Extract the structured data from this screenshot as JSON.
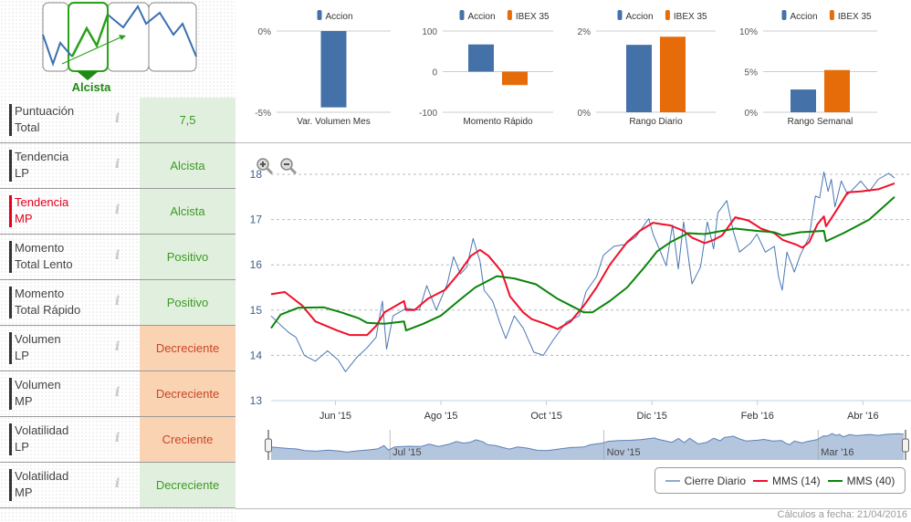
{
  "logo": {
    "label": "Alcista"
  },
  "indicators": [
    {
      "label_1": "Puntuación",
      "label_2": "Total",
      "value": "7,5",
      "status": "pos",
      "highlight": false
    },
    {
      "label_1": "Tendencia",
      "label_2": "LP",
      "value": "Alcista",
      "status": "pos",
      "highlight": false
    },
    {
      "label_1": "Tendencia",
      "label_2": "MP",
      "value": "Alcista",
      "status": "pos",
      "highlight": true
    },
    {
      "label_1": "Momento",
      "label_2": "Total Lento",
      "value": "Positivo",
      "status": "pos",
      "highlight": false
    },
    {
      "label_1": "Momento",
      "label_2": "Total Rápido",
      "value": "Positivo",
      "status": "pos",
      "highlight": false
    },
    {
      "label_1": "Volumen",
      "label_2": "LP",
      "value": "Decreciente",
      "status": "neg",
      "highlight": false
    },
    {
      "label_1": "Volumen",
      "label_2": "MP",
      "value": "Decreciente",
      "status": "neg",
      "highlight": false
    },
    {
      "label_1": "Volatilidad",
      "label_2": "LP",
      "value": "Creciente",
      "status": "neg",
      "highlight": false
    },
    {
      "label_1": "Volatilidad",
      "label_2": "MP",
      "value": "Decreciente",
      "status": "pos",
      "highlight": false
    }
  ],
  "info_icon": "i",
  "colors": {
    "accion": "#4472a8",
    "ibex": "#e66c0a",
    "cierre": "#4a76b4",
    "mms14": "#f0102a",
    "mms40": "#0a840a"
  },
  "chart_data": [
    {
      "type": "bar",
      "title": "Var. Volumen Mes",
      "series": [
        {
          "name": "Accion",
          "values": [
            -4.7
          ]
        }
      ],
      "ylim": [
        -5,
        0
      ],
      "yticks": [
        "0%",
        "-5%"
      ]
    },
    {
      "type": "bar",
      "title": "Momento Rápido",
      "series": [
        {
          "name": "Accion",
          "values": [
            67
          ]
        },
        {
          "name": "IBEX 35",
          "values": [
            -33
          ]
        }
      ],
      "ylim": [
        -100,
        100
      ],
      "yticks": [
        "100",
        "0",
        "-100"
      ]
    },
    {
      "type": "bar",
      "title": "Rango Diario",
      "series": [
        {
          "name": "Accion",
          "values": [
            1.66
          ]
        },
        {
          "name": "IBEX 35",
          "values": [
            1.86
          ]
        }
      ],
      "ylim": [
        0,
        2
      ],
      "yticks": [
        "2%",
        "0%"
      ]
    },
    {
      "type": "bar",
      "title": "Rango Semanal",
      "series": [
        {
          "name": "Accion",
          "values": [
            2.8
          ]
        },
        {
          "name": "IBEX 35",
          "values": [
            5.2
          ]
        }
      ],
      "ylim": [
        0,
        10
      ],
      "yticks": [
        "10%",
        "5%",
        "0%"
      ]
    },
    {
      "type": "line",
      "x_unit": "months since 2015-05-01",
      "xlim": [
        -0.22,
        11.6
      ],
      "ylim": [
        13,
        18
      ],
      "yticks": [
        13,
        14,
        15,
        16,
        17,
        18
      ],
      "xticks": [
        {
          "x": 1,
          "label": "Jun '15"
        },
        {
          "x": 3,
          "label": "Ago '15"
        },
        {
          "x": 5,
          "label": "Oct '15"
        },
        {
          "x": 7,
          "label": "Dic '15"
        },
        {
          "x": 9,
          "label": "Feb '16"
        },
        {
          "x": 11,
          "label": "Abr '16"
        }
      ],
      "navigator_labels": [
        {
          "x": 2,
          "label": "Jul '15"
        },
        {
          "x": 6,
          "label": "Nov '15"
        },
        {
          "x": 10,
          "label": "Mar '16"
        }
      ],
      "series": [
        {
          "name": "Cierre Diario",
          "points": [
            [
              -0.22,
              14.87
            ],
            [
              -0.04,
              14.67
            ],
            [
              0.12,
              14.5
            ],
            [
              0.25,
              14.4
            ],
            [
              0.41,
              14.0
            ],
            [
              0.62,
              13.87
            ],
            [
              0.85,
              14.1
            ],
            [
              1.05,
              13.9
            ],
            [
              1.19,
              13.64
            ],
            [
              1.4,
              13.95
            ],
            [
              1.6,
              14.17
            ],
            [
              1.77,
              14.4
            ],
            [
              1.89,
              15.2
            ],
            [
              1.97,
              14.14
            ],
            [
              2.09,
              14.87
            ],
            [
              2.34,
              15.04
            ],
            [
              2.59,
              15.0
            ],
            [
              2.73,
              15.54
            ],
            [
              2.91,
              15.0
            ],
            [
              3.12,
              15.58
            ],
            [
              3.24,
              16.18
            ],
            [
              3.37,
              15.8
            ],
            [
              3.49,
              15.95
            ],
            [
              3.61,
              16.58
            ],
            [
              3.74,
              16.08
            ],
            [
              3.82,
              15.44
            ],
            [
              3.98,
              15.2
            ],
            [
              4.11,
              14.74
            ],
            [
              4.23,
              14.37
            ],
            [
              4.39,
              14.87
            ],
            [
              4.56,
              14.6
            ],
            [
              4.76,
              14.07
            ],
            [
              4.94,
              14.0
            ],
            [
              5.13,
              14.34
            ],
            [
              5.38,
              14.74
            ],
            [
              5.62,
              14.87
            ],
            [
              5.75,
              15.41
            ],
            [
              5.95,
              15.74
            ],
            [
              6.08,
              16.21
            ],
            [
              6.28,
              16.41
            ],
            [
              6.49,
              16.45
            ],
            [
              6.69,
              16.61
            ],
            [
              6.94,
              17.02
            ],
            [
              7.02,
              16.68
            ],
            [
              7.14,
              16.35
            ],
            [
              7.27,
              15.98
            ],
            [
              7.39,
              16.88
            ],
            [
              7.5,
              15.91
            ],
            [
              7.6,
              16.95
            ],
            [
              7.76,
              15.58
            ],
            [
              7.92,
              15.95
            ],
            [
              8.05,
              16.95
            ],
            [
              8.17,
              16.35
            ],
            [
              8.25,
              17.15
            ],
            [
              8.42,
              17.42
            ],
            [
              8.54,
              16.75
            ],
            [
              8.66,
              16.28
            ],
            [
              8.87,
              16.48
            ],
            [
              8.99,
              16.68
            ],
            [
              9.15,
              16.28
            ],
            [
              9.32,
              16.41
            ],
            [
              9.4,
              15.74
            ],
            [
              9.47,
              15.44
            ],
            [
              9.56,
              16.28
            ],
            [
              9.7,
              15.84
            ],
            [
              9.81,
              16.21
            ],
            [
              9.98,
              16.61
            ],
            [
              10.1,
              17.52
            ],
            [
              10.18,
              17.48
            ],
            [
              10.26,
              18.05
            ],
            [
              10.34,
              17.62
            ],
            [
              10.4,
              17.89
            ],
            [
              10.47,
              17.28
            ],
            [
              10.59,
              17.85
            ],
            [
              10.71,
              17.55
            ],
            [
              10.96,
              17.85
            ],
            [
              11.12,
              17.62
            ],
            [
              11.29,
              17.89
            ],
            [
              11.49,
              18.02
            ],
            [
              11.6,
              17.92
            ]
          ]
        },
        {
          "name": "MMS (14)",
          "points": [
            [
              -0.22,
              15.35
            ],
            [
              0.04,
              15.4
            ],
            [
              0.37,
              15.1
            ],
            [
              0.62,
              14.75
            ],
            [
              1.03,
              14.55
            ],
            [
              1.27,
              14.45
            ],
            [
              1.6,
              14.45
            ],
            [
              1.77,
              14.65
            ],
            [
              1.93,
              14.95
            ],
            [
              2.3,
              15.2
            ],
            [
              2.34,
              15.0
            ],
            [
              2.5,
              15.0
            ],
            [
              2.75,
              15.25
            ],
            [
              3.08,
              15.45
            ],
            [
              3.33,
              15.8
            ],
            [
              3.57,
              16.2
            ],
            [
              3.74,
              16.33
            ],
            [
              3.9,
              16.2
            ],
            [
              4.15,
              15.85
            ],
            [
              4.31,
              15.3
            ],
            [
              4.56,
              14.95
            ],
            [
              4.72,
              14.8
            ],
            [
              4.97,
              14.7
            ],
            [
              5.21,
              14.58
            ],
            [
              5.46,
              14.75
            ],
            [
              5.71,
              15.1
            ],
            [
              5.95,
              15.5
            ],
            [
              6.2,
              16.0
            ],
            [
              6.53,
              16.5
            ],
            [
              6.77,
              16.75
            ],
            [
              7.02,
              16.93
            ],
            [
              7.18,
              16.9
            ],
            [
              7.35,
              16.87
            ],
            [
              7.6,
              16.75
            ],
            [
              7.76,
              16.6
            ],
            [
              8.0,
              16.48
            ],
            [
              8.17,
              16.55
            ],
            [
              8.33,
              16.65
            ],
            [
              8.58,
              17.05
            ],
            [
              8.83,
              16.98
            ],
            [
              9.07,
              16.8
            ],
            [
              9.32,
              16.7
            ],
            [
              9.48,
              16.55
            ],
            [
              9.73,
              16.45
            ],
            [
              9.85,
              16.38
            ],
            [
              9.98,
              16.5
            ],
            [
              10.14,
              16.9
            ],
            [
              10.26,
              17.07
            ],
            [
              10.3,
              16.85
            ],
            [
              10.47,
              17.15
            ],
            [
              10.71,
              17.6
            ],
            [
              10.96,
              17.62
            ],
            [
              11.29,
              17.67
            ],
            [
              11.6,
              17.8
            ]
          ]
        },
        {
          "name": "MMS (40)",
          "points": [
            [
              -0.22,
              14.6
            ],
            [
              -0.04,
              14.9
            ],
            [
              0.29,
              15.05
            ],
            [
              0.78,
              15.06
            ],
            [
              1.11,
              14.95
            ],
            [
              1.44,
              14.82
            ],
            [
              1.6,
              14.72
            ],
            [
              1.93,
              14.7
            ],
            [
              2.3,
              14.75
            ],
            [
              2.34,
              14.55
            ],
            [
              2.67,
              14.7
            ],
            [
              3.0,
              14.88
            ],
            [
              3.33,
              15.2
            ],
            [
              3.65,
              15.5
            ],
            [
              4.06,
              15.75
            ],
            [
              4.39,
              15.7
            ],
            [
              4.8,
              15.57
            ],
            [
              5.21,
              15.25
            ],
            [
              5.46,
              15.1
            ],
            [
              5.71,
              14.95
            ],
            [
              5.87,
              14.95
            ],
            [
              6.2,
              15.2
            ],
            [
              6.53,
              15.5
            ],
            [
              6.86,
              15.95
            ],
            [
              7.1,
              16.3
            ],
            [
              7.35,
              16.5
            ],
            [
              7.68,
              16.7
            ],
            [
              8.0,
              16.68
            ],
            [
              8.33,
              16.75
            ],
            [
              8.58,
              16.8
            ],
            [
              8.99,
              16.75
            ],
            [
              9.32,
              16.72
            ],
            [
              9.48,
              16.65
            ],
            [
              9.81,
              16.72
            ],
            [
              10.26,
              16.75
            ],
            [
              10.3,
              16.52
            ],
            [
              10.63,
              16.7
            ],
            [
              11.12,
              17.0
            ],
            [
              11.6,
              17.5
            ]
          ]
        }
      ]
    }
  ],
  "legend": [
    {
      "label": "Cierre Diario"
    },
    {
      "label": "MMS (14)"
    },
    {
      "label": "MMS (40)"
    }
  ],
  "zoom": {
    "in": "zoom-in",
    "out": "zoom-out"
  },
  "footer": "Cálculos a fecha: 21/04/2016"
}
